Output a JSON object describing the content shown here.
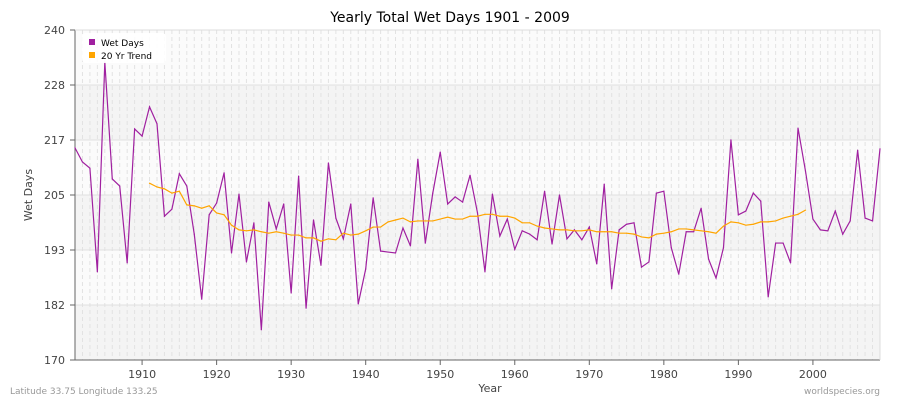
{
  "chart_data": {
    "type": "line",
    "title": "Yearly Total Wet Days 1901 - 2009",
    "xlabel": "Year",
    "ylabel": "Wet Days",
    "ylim": [
      170,
      240
    ],
    "xlim": [
      1901,
      2009
    ],
    "y_tick_labels": [
      "170",
      "182",
      "193",
      "205",
      "217",
      "228",
      "240"
    ],
    "x_ticks": [
      1910,
      1920,
      1930,
      1940,
      1950,
      1960,
      1970,
      1980,
      1990,
      2000
    ],
    "grid": true,
    "legend": "top-left",
    "series": [
      {
        "name": "Wet Days",
        "color": "#a020a0",
        "start_year": 1901,
        "values": [
          215.0,
          212.0,
          210.7,
          188.7,
          233.2,
          208.4,
          206.9,
          190.6,
          219.0,
          217.5,
          223.7,
          220.1,
          200.5,
          202.0,
          209.5,
          206.9,
          196.7,
          182.9,
          200.8,
          203.3,
          209.7,
          192.7,
          205.2,
          190.8,
          199.1,
          176.4,
          203.5,
          197.8,
          203.1,
          184.2,
          209.0,
          181.0,
          199.7,
          190.1,
          211.8,
          200.1,
          195.7,
          203.1,
          181.9,
          189.3,
          204.4,
          193.1,
          192.9,
          192.7,
          198.0,
          194.2,
          212.6,
          194.8,
          205.4,
          214.1,
          203.1,
          204.6,
          203.5,
          209.2,
          201.2,
          188.7,
          205.2,
          196.3,
          199.9,
          193.5,
          197.4,
          196.7,
          195.5,
          205.8,
          194.6,
          205.0,
          195.7,
          197.6,
          195.5,
          198.2,
          190.4,
          207.3,
          185.1,
          197.6,
          198.8,
          199.1,
          189.7,
          190.8,
          205.4,
          205.8,
          193.8,
          188.2,
          197.2,
          197.2,
          202.2,
          191.4,
          187.4,
          193.8,
          216.7,
          200.8,
          201.6,
          205.4,
          203.7,
          183.4,
          194.8,
          194.8,
          190.6,
          219.2,
          210.1,
          199.9,
          197.6,
          197.4,
          201.6,
          196.7,
          199.5,
          214.5,
          200.1,
          199.5,
          214.8
        ]
      },
      {
        "name": "20 Yr Trend",
        "color": "#ffa500",
        "start_year": 1911,
        "values": [
          207.5,
          206.7,
          206.3,
          205.4,
          205.8,
          202.9,
          202.7,
          202.2,
          202.7,
          201.2,
          200.8,
          198.6,
          197.6,
          197.4,
          197.6,
          197.2,
          196.9,
          197.2,
          196.9,
          196.5,
          196.5,
          195.9,
          195.9,
          195.2,
          195.7,
          195.5,
          196.9,
          196.5,
          196.7,
          197.4,
          198.2,
          198.2,
          199.3,
          199.7,
          200.1,
          199.3,
          199.5,
          199.5,
          199.5,
          199.9,
          200.3,
          199.9,
          199.9,
          200.5,
          200.5,
          200.9,
          200.9,
          200.5,
          200.5,
          200.1,
          199.1,
          199.1,
          198.4,
          198.0,
          197.8,
          197.6,
          197.6,
          197.4,
          197.4,
          197.6,
          197.2,
          197.2,
          197.2,
          196.9,
          196.9,
          196.7,
          196.1,
          195.9,
          196.7,
          196.9,
          197.2,
          197.8,
          197.8,
          197.6,
          197.4,
          197.2,
          196.9,
          198.4,
          199.3,
          199.1,
          198.6,
          198.8,
          199.3,
          199.3,
          199.5,
          200.1,
          200.5,
          200.9,
          201.8
        ]
      }
    ]
  },
  "footer": {
    "location": "Latitude 33.75 Longitude 133.25",
    "source": "worldspecies.org"
  }
}
